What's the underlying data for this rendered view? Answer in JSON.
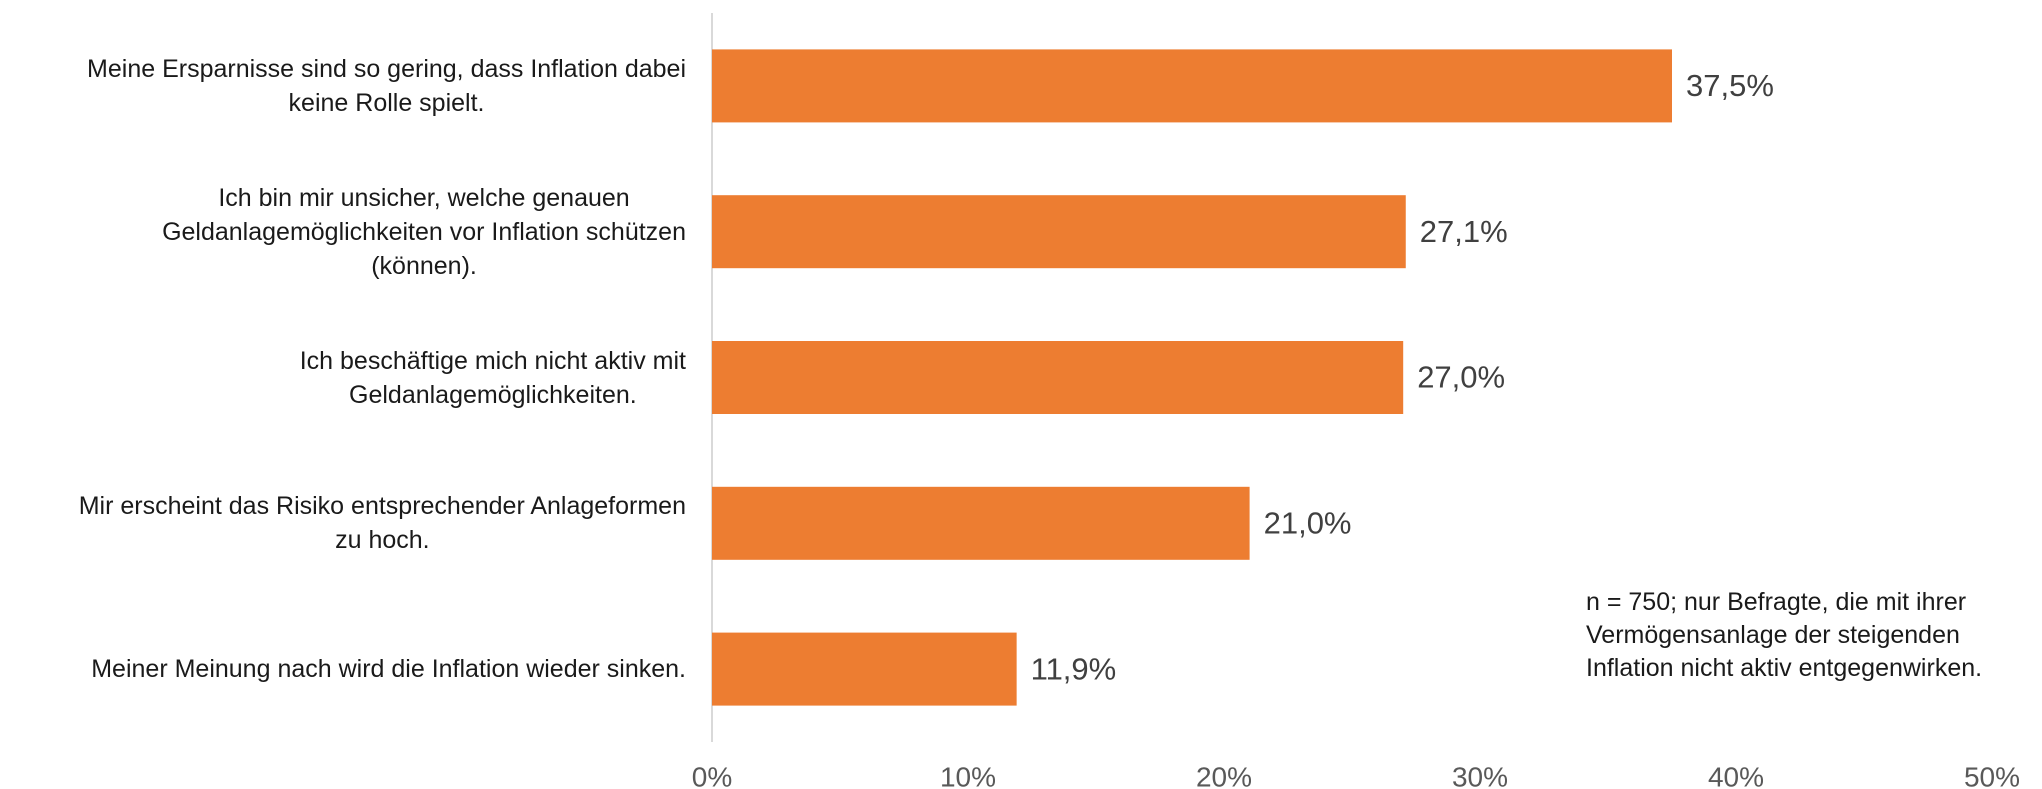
{
  "chart_data": {
    "type": "barh",
    "categories": [
      "Meine Ersparnisse sind so gering, dass Inflation dabei\nkeine Rolle spielt.",
      "Ich bin mir unsicher, welche genauen\nGeldanlagemöglichkeiten vor Inflation schützen\n(können).",
      "Ich beschäftige mich nicht aktiv mit\nGeldanlagemöglichkeiten.",
      "Mir erscheint das Risiko entsprechender Anlageformen\nzu hoch.",
      "Meiner Meinung nach wird die Inflation wieder sinken."
    ],
    "values": [
      37.5,
      27.1,
      27.0,
      21.0,
      11.9
    ],
    "value_labels": [
      "37,5%",
      "27,1%",
      "27,0%",
      "21,0%",
      "11,9%"
    ],
    "color": "#ed7d31",
    "xlim": [
      0,
      50
    ],
    "xticks": [
      {
        "value": 0,
        "label": "0%"
      },
      {
        "value": 10,
        "label": "10%"
      },
      {
        "value": 20,
        "label": "20%"
      },
      {
        "value": 30,
        "label": "30%"
      },
      {
        "value": 40,
        "label": "40%"
      },
      {
        "value": 50,
        "label": "50%"
      }
    ],
    "annotation": "n = 750; nur Befragte, die mit ihrer\nVermögensanlage der steigenden\nInflation nicht aktiv entgegenwirken."
  }
}
